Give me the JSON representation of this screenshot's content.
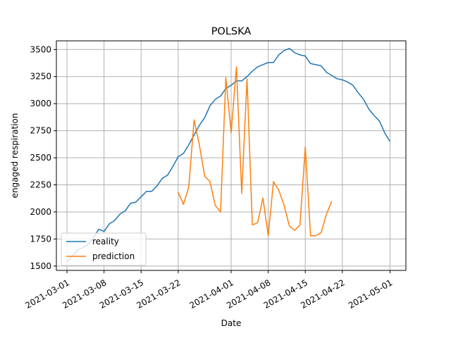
{
  "chart_data": {
    "type": "line",
    "title": "POLSKA",
    "xlabel": "Date",
    "ylabel": "engaged respiration",
    "xlim": [
      "2021-02-27",
      "2021-05-04"
    ],
    "ylim": [
      1460,
      3580
    ],
    "grid": true,
    "legend_position": "lower-left",
    "x_ticks": [
      "2021-03-01",
      "2021-03-08",
      "2021-03-15",
      "2021-03-22",
      "2021-04-01",
      "2021-04-08",
      "2021-04-15",
      "2021-04-22",
      "2021-05-01"
    ],
    "y_ticks": [
      1500,
      1750,
      2000,
      2250,
      2500,
      2750,
      3000,
      3250,
      3500
    ],
    "series": [
      {
        "name": "reality",
        "color": "#1f77b4",
        "start_date": "2021-03-01",
        "step_days": 1,
        "values": [
          1540,
          1590,
          1650,
          1670,
          1700,
          1760,
          1840,
          1820,
          1890,
          1920,
          1980,
          2010,
          2080,
          2090,
          2140,
          2190,
          2190,
          2240,
          2310,
          2340,
          2420,
          2510,
          2540,
          2620,
          2710,
          2800,
          2870,
          2980,
          3040,
          3070,
          3140,
          3170,
          3210,
          3210,
          3250,
          3300,
          3340,
          3360,
          3380,
          3380,
          3450,
          3490,
          3510,
          3470,
          3450,
          3440,
          3370,
          3360,
          3350,
          3290,
          3260,
          3230,
          3220,
          3200,
          3170,
          3100,
          3040,
          2950,
          2890,
          2840,
          2730,
          2650
        ]
      },
      {
        "name": "prediction",
        "color": "#ff7f0e",
        "start_date": "2021-03-22",
        "step_days": 1,
        "values": [
          2180,
          2070,
          2230,
          2850,
          2620,
          2330,
          2280,
          2060,
          2000,
          3240,
          2730,
          3340,
          2170,
          3230,
          1880,
          1900,
          2130,
          1780,
          2280,
          2200,
          2060,
          1870,
          1830,
          1880,
          2600,
          1780,
          1780,
          1810,
          1980,
          2100
        ]
      }
    ]
  }
}
